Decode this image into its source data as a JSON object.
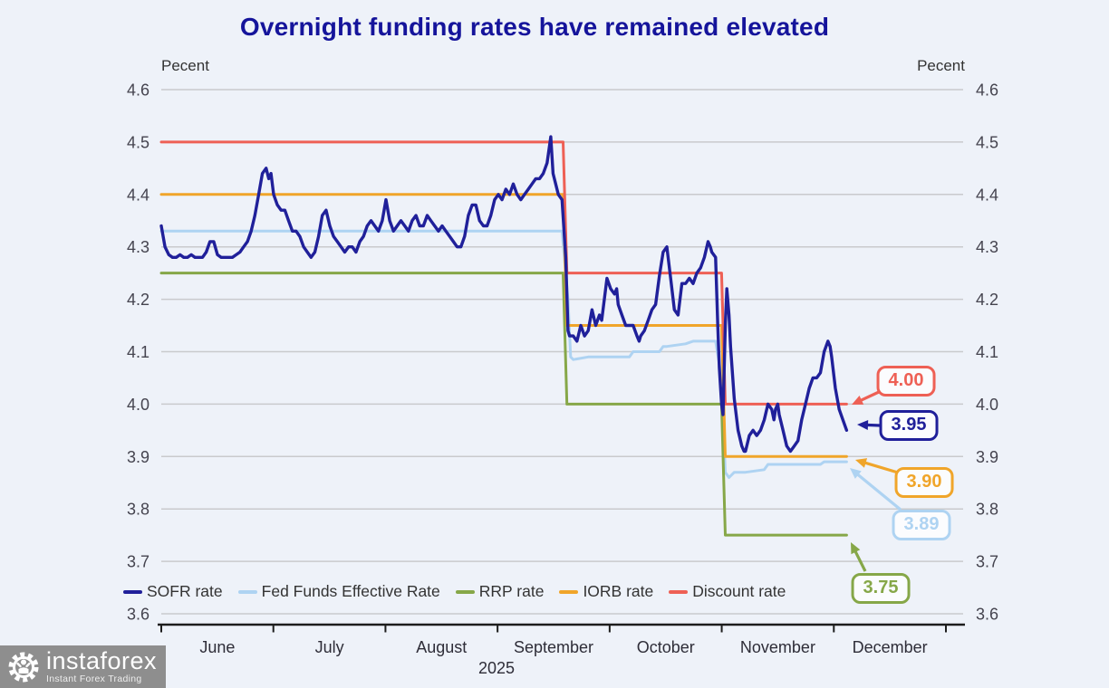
{
  "branding": {
    "name": "instaforex",
    "tagline": "Instant Forex Trading"
  },
  "chart_data": {
    "type": "line",
    "title": "Overnight funding rates have remained elevated",
    "ylabel_left": "Pecent",
    "ylabel_right": "Pecent",
    "ylim": [
      3.6,
      4.6
    ],
    "y_ticks": [
      "4.6",
      "4.5",
      "4.4",
      "4.3",
      "4.2",
      "4.1",
      "4.0",
      "3.9",
      "3.8",
      "3.7",
      "3.6"
    ],
    "x_categories_months": [
      "June",
      "July",
      "August",
      "September",
      "October",
      "November",
      "December"
    ],
    "year_label": "2025",
    "x_unit": "days since June 1, 2025",
    "xlim_days": [
      0,
      214
    ],
    "grid": "horizontal",
    "legend_position": "bottom-left",
    "series": [
      {
        "name": "Fed Funds Effective Rate",
        "color": "#aed3f2",
        "values": [
          [
            0,
            4.33
          ],
          [
            107,
            4.33
          ],
          [
            108.6,
            4.2
          ],
          [
            109.3,
            4.09
          ],
          [
            110,
            4.085
          ],
          [
            114,
            4.09
          ],
          [
            120,
            4.09
          ],
          [
            125,
            4.09
          ],
          [
            126,
            4.1
          ],
          [
            130,
            4.1
          ],
          [
            133,
            4.1
          ],
          [
            134,
            4.11
          ],
          [
            135,
            4.11
          ],
          [
            140,
            4.115
          ],
          [
            142,
            4.12
          ],
          [
            148,
            4.12
          ],
          [
            149.6,
            4.05
          ],
          [
            150.6,
            3.87
          ],
          [
            151.6,
            3.86
          ],
          [
            153,
            3.87
          ],
          [
            156,
            3.87
          ],
          [
            161,
            3.875
          ],
          [
            162,
            3.885
          ],
          [
            170,
            3.885
          ],
          [
            176,
            3.885
          ],
          [
            177,
            3.89
          ],
          [
            183,
            3.89
          ]
        ]
      },
      {
        "name": "RRP rate",
        "color": "#86a748",
        "values": [
          [
            0,
            4.25
          ],
          [
            107.3,
            4.25
          ],
          [
            108.3,
            4.0
          ],
          [
            149.6,
            4.0
          ],
          [
            150.6,
            3.75
          ],
          [
            183,
            3.75
          ]
        ]
      },
      {
        "name": "IORB rate",
        "color": "#f0a52a",
        "values": [
          [
            0,
            4.4
          ],
          [
            107.3,
            4.4
          ],
          [
            108.3,
            4.15
          ],
          [
            149.6,
            4.15
          ],
          [
            150.6,
            3.9
          ],
          [
            183,
            3.9
          ]
        ]
      },
      {
        "name": "Discount rate",
        "color": "#ee6055",
        "values": [
          [
            0,
            4.5
          ],
          [
            107.3,
            4.5
          ],
          [
            108.3,
            4.25
          ],
          [
            149.6,
            4.25
          ],
          [
            150.6,
            4.0
          ],
          [
            183,
            4.0
          ]
        ]
      },
      {
        "name": "SOFR rate",
        "color": "#20209a",
        "values": [
          [
            0,
            4.34
          ],
          [
            1,
            4.3
          ],
          [
            2,
            4.285
          ],
          [
            3,
            4.28
          ],
          [
            4,
            4.28
          ],
          [
            5,
            4.285
          ],
          [
            6,
            4.28
          ],
          [
            7,
            4.28
          ],
          [
            8,
            4.285
          ],
          [
            9,
            4.28
          ],
          [
            10,
            4.28
          ],
          [
            11,
            4.28
          ],
          [
            12,
            4.29
          ],
          [
            13,
            4.31
          ],
          [
            14,
            4.31
          ],
          [
            15,
            4.285
          ],
          [
            16,
            4.28
          ],
          [
            17,
            4.28
          ],
          [
            18,
            4.28
          ],
          [
            19,
            4.28
          ],
          [
            20,
            4.285
          ],
          [
            21,
            4.29
          ],
          [
            22,
            4.3
          ],
          [
            23,
            4.31
          ],
          [
            24,
            4.33
          ],
          [
            25,
            4.36
          ],
          [
            26,
            4.4
          ],
          [
            27,
            4.44
          ],
          [
            28,
            4.45
          ],
          [
            28.7,
            4.43
          ],
          [
            29.3,
            4.44
          ],
          [
            30,
            4.4
          ],
          [
            31,
            4.38
          ],
          [
            32,
            4.37
          ],
          [
            33,
            4.37
          ],
          [
            34,
            4.35
          ],
          [
            35,
            4.33
          ],
          [
            36,
            4.33
          ],
          [
            37,
            4.32
          ],
          [
            38,
            4.3
          ],
          [
            39,
            4.29
          ],
          [
            40,
            4.28
          ],
          [
            41,
            4.29
          ],
          [
            42,
            4.32
          ],
          [
            43,
            4.36
          ],
          [
            44,
            4.37
          ],
          [
            45,
            4.34
          ],
          [
            46,
            4.32
          ],
          [
            47,
            4.31
          ],
          [
            48,
            4.3
          ],
          [
            49,
            4.29
          ],
          [
            50,
            4.3
          ],
          [
            51,
            4.3
          ],
          [
            52,
            4.29
          ],
          [
            53,
            4.31
          ],
          [
            54,
            4.32
          ],
          [
            55,
            4.34
          ],
          [
            56,
            4.35
          ],
          [
            57,
            4.34
          ],
          [
            58,
            4.33
          ],
          [
            59,
            4.35
          ],
          [
            60,
            4.39
          ],
          [
            61,
            4.35
          ],
          [
            62,
            4.33
          ],
          [
            63,
            4.34
          ],
          [
            64,
            4.35
          ],
          [
            65,
            4.34
          ],
          [
            66,
            4.33
          ],
          [
            67,
            4.35
          ],
          [
            68,
            4.36
          ],
          [
            69,
            4.34
          ],
          [
            70,
            4.34
          ],
          [
            71,
            4.36
          ],
          [
            72,
            4.35
          ],
          [
            73,
            4.34
          ],
          [
            74,
            4.33
          ],
          [
            75,
            4.34
          ],
          [
            76,
            4.33
          ],
          [
            77,
            4.32
          ],
          [
            78,
            4.31
          ],
          [
            79,
            4.3
          ],
          [
            80,
            4.3
          ],
          [
            81,
            4.32
          ],
          [
            82,
            4.36
          ],
          [
            83,
            4.38
          ],
          [
            84,
            4.38
          ],
          [
            85,
            4.35
          ],
          [
            86,
            4.34
          ],
          [
            87,
            4.34
          ],
          [
            88,
            4.36
          ],
          [
            89,
            4.39
          ],
          [
            90,
            4.4
          ],
          [
            91,
            4.39
          ],
          [
            92,
            4.41
          ],
          [
            93,
            4.4
          ],
          [
            94,
            4.42
          ],
          [
            95,
            4.4
          ],
          [
            96,
            4.39
          ],
          [
            97,
            4.4
          ],
          [
            98,
            4.41
          ],
          [
            99,
            4.42
          ],
          [
            100,
            4.43
          ],
          [
            101,
            4.43
          ],
          [
            102,
            4.44
          ],
          [
            103,
            4.46
          ],
          [
            104,
            4.51
          ],
          [
            104.6,
            4.44
          ],
          [
            105.3,
            4.42
          ],
          [
            106,
            4.4
          ],
          [
            107,
            4.39
          ],
          [
            108,
            4.28
          ],
          [
            108.6,
            4.14
          ],
          [
            109,
            4.13
          ],
          [
            110,
            4.13
          ],
          [
            111,
            4.12
          ],
          [
            112,
            4.15
          ],
          [
            113,
            4.13
          ],
          [
            114,
            4.14
          ],
          [
            115,
            4.18
          ],
          [
            116,
            4.15
          ],
          [
            117,
            4.17
          ],
          [
            117.6,
            4.16
          ],
          [
            119,
            4.24
          ],
          [
            120,
            4.22
          ],
          [
            121,
            4.21
          ],
          [
            121.6,
            4.22
          ],
          [
            122,
            4.19
          ],
          [
            123,
            4.17
          ],
          [
            124,
            4.15
          ],
          [
            125,
            4.15
          ],
          [
            126,
            4.15
          ],
          [
            127,
            4.13
          ],
          [
            127.6,
            4.12
          ],
          [
            128,
            4.13
          ],
          [
            129,
            4.14
          ],
          [
            130,
            4.16
          ],
          [
            131,
            4.18
          ],
          [
            132,
            4.19
          ],
          [
            133,
            4.245
          ],
          [
            134,
            4.29
          ],
          [
            135,
            4.3
          ],
          [
            136,
            4.24
          ],
          [
            137,
            4.18
          ],
          [
            138,
            4.17
          ],
          [
            139,
            4.23
          ],
          [
            140,
            4.23
          ],
          [
            141,
            4.24
          ],
          [
            142,
            4.23
          ],
          [
            143,
            4.25
          ],
          [
            144,
            4.26
          ],
          [
            145,
            4.28
          ],
          [
            146,
            4.31
          ],
          [
            146.6,
            4.3
          ],
          [
            147,
            4.29
          ],
          [
            148,
            4.28
          ],
          [
            148.6,
            4.15
          ],
          [
            149,
            4.07
          ],
          [
            149.6,
            4.0
          ],
          [
            150,
            3.98
          ],
          [
            150.6,
            4.15
          ],
          [
            151,
            4.22
          ],
          [
            151.6,
            4.17
          ],
          [
            152,
            4.11
          ],
          [
            153,
            4.01
          ],
          [
            154,
            3.95
          ],
          [
            155,
            3.92
          ],
          [
            155.6,
            3.91
          ],
          [
            156,
            3.91
          ],
          [
            157,
            3.94
          ],
          [
            158,
            3.95
          ],
          [
            159,
            3.94
          ],
          [
            160,
            3.95
          ],
          [
            161,
            3.97
          ],
          [
            162,
            4.0
          ],
          [
            163,
            3.99
          ],
          [
            163.6,
            3.97
          ],
          [
            164,
            3.99
          ],
          [
            164.6,
            4.0
          ],
          [
            165,
            3.98
          ],
          [
            166,
            3.95
          ],
          [
            167,
            3.92
          ],
          [
            168,
            3.91
          ],
          [
            169,
            3.92
          ],
          [
            170,
            3.93
          ],
          [
            171,
            3.97
          ],
          [
            172,
            4.0
          ],
          [
            173,
            4.03
          ],
          [
            174,
            4.05
          ],
          [
            175,
            4.05
          ],
          [
            176,
            4.06
          ],
          [
            177,
            4.1
          ],
          [
            178,
            4.12
          ],
          [
            178.6,
            4.11
          ],
          [
            179,
            4.09
          ],
          [
            180,
            4.03
          ],
          [
            181,
            3.99
          ],
          [
            182,
            3.97
          ],
          [
            183,
            3.95
          ]
        ]
      }
    ],
    "legend_order": [
      "SOFR rate",
      "Fed Funds Effective Rate",
      "RRP rate",
      "IORB rate",
      "Discount rate"
    ],
    "annotations": [
      {
        "series": "Discount rate",
        "label": "4.00",
        "value": 4.0,
        "color": "#ee6055"
      },
      {
        "series": "SOFR rate",
        "label": "3.95",
        "value": 3.95,
        "color": "#20209a"
      },
      {
        "series": "IORB rate",
        "label": "3.90",
        "value": 3.9,
        "color": "#f0a52a"
      },
      {
        "series": "Fed Funds Effective Rate",
        "label": "3.89",
        "value": 3.89,
        "color": "#aed3f2"
      },
      {
        "series": "RRP rate",
        "label": "3.75",
        "value": 3.75,
        "color": "#86a748"
      }
    ]
  }
}
